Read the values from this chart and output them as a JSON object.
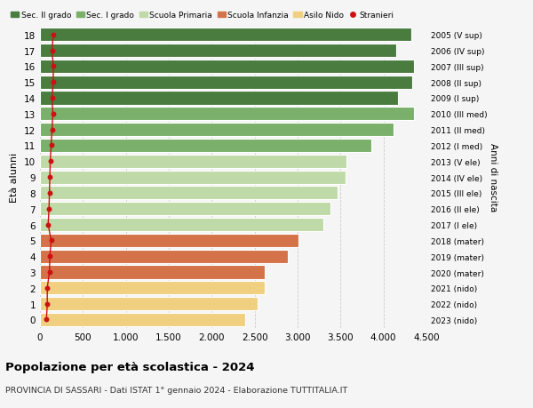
{
  "ages": [
    18,
    17,
    16,
    15,
    14,
    13,
    12,
    11,
    10,
    9,
    8,
    7,
    6,
    5,
    4,
    3,
    2,
    1,
    0
  ],
  "right_labels": [
    "2005 (V sup)",
    "2006 (IV sup)",
    "2007 (III sup)",
    "2008 (II sup)",
    "2009 (I sup)",
    "2010 (III med)",
    "2011 (II med)",
    "2012 (I med)",
    "2013 (V ele)",
    "2014 (IV ele)",
    "2015 (III ele)",
    "2016 (II ele)",
    "2017 (I ele)",
    "2018 (mater)",
    "2019 (mater)",
    "2020 (mater)",
    "2021 (nido)",
    "2022 (nido)",
    "2023 (nido)"
  ],
  "bar_values": [
    4320,
    4150,
    4350,
    4330,
    4170,
    4350,
    4120,
    3860,
    3570,
    3560,
    3470,
    3380,
    3300,
    3010,
    2890,
    2620,
    2620,
    2530,
    2390
  ],
  "stranieri_values": [
    155,
    140,
    155,
    155,
    140,
    150,
    140,
    130,
    120,
    115,
    110,
    105,
    95,
    130,
    115,
    110,
    85,
    85,
    75
  ],
  "bar_colors": [
    "#4a7c3f",
    "#4a7c3f",
    "#4a7c3f",
    "#4a7c3f",
    "#4a7c3f",
    "#7ab06a",
    "#7ab06a",
    "#7ab06a",
    "#c0d9a8",
    "#c0d9a8",
    "#c0d9a8",
    "#c0d9a8",
    "#c0d9a8",
    "#d4724a",
    "#d4724a",
    "#d4724a",
    "#f0d080",
    "#f0d080",
    "#f0d080"
  ],
  "legend_labels": [
    "Sec. II grado",
    "Sec. I grado",
    "Scuola Primaria",
    "Scuola Infanzia",
    "Asilo Nido",
    "Stranieri"
  ],
  "legend_colors": [
    "#4a7c3f",
    "#7ab06a",
    "#c0d9a8",
    "#d4724a",
    "#f0d080",
    "#cc1111"
  ],
  "title": "Popolazione per età scolastica - 2024",
  "subtitle": "PROVINCIA DI SASSARI - Dati ISTAT 1° gennaio 2024 - Elaborazione TUTTITALIA.IT",
  "ylabel": "Età alunni",
  "right_ylabel": "Anni di nascita",
  "xlim": [
    0,
    4500
  ],
  "xticks": [
    0,
    500,
    1000,
    1500,
    2000,
    2500,
    3000,
    3500,
    4000,
    4500
  ],
  "background_color": "#f5f5f5",
  "bar_edge_color": "white",
  "grid_color": "#cccccc",
  "stranieri_color": "#cc1111",
  "bar_height": 0.85
}
